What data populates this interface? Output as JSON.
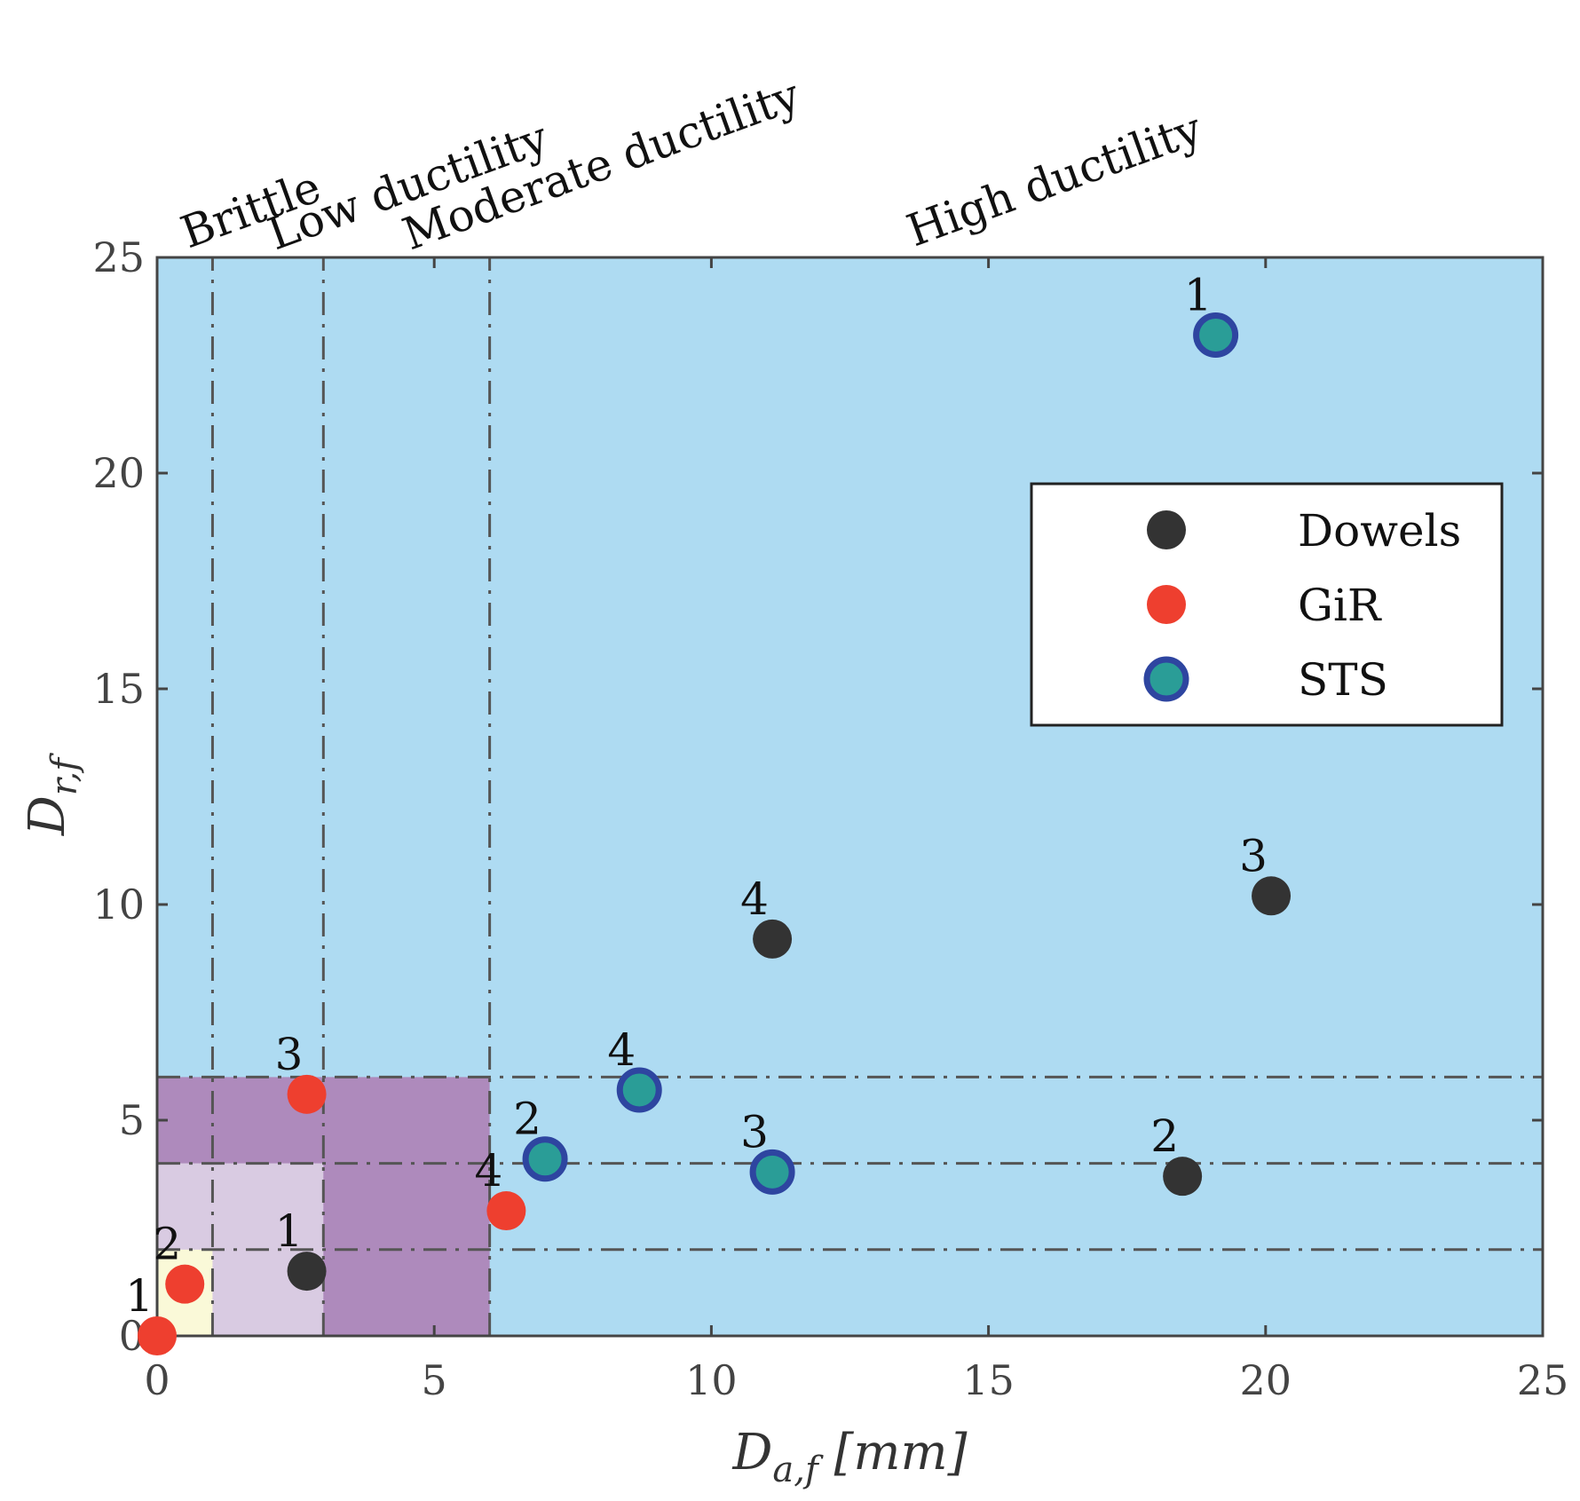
{
  "chart_data": {
    "type": "scatter",
    "xlabel": "D_{a,f} [mm]",
    "ylabel": "D_{r,f}",
    "xlim": [
      0,
      25
    ],
    "ylim": [
      0,
      25
    ],
    "xticks": [
      0,
      5,
      10,
      15,
      20,
      25
    ],
    "yticks": [
      0,
      5,
      10,
      15,
      20,
      25
    ],
    "legend_position": "top-right",
    "zones": [
      {
        "name": "Brittle",
        "x_max": 1,
        "y_max": 2,
        "color": "#faf9d8"
      },
      {
        "name": "Low ductility",
        "x_max": 3,
        "y_max": 4,
        "color": "#d9cbe2"
      },
      {
        "name": "Moderate ductility",
        "x_max": 6,
        "y_max": 6,
        "color": "#ae8abc"
      },
      {
        "name": "High ductility",
        "x_max": 25,
        "y_max": 25,
        "color": "#aedbf2"
      }
    ],
    "threshold_lines": {
      "x": [
        1,
        3,
        6
      ],
      "y": [
        2,
        4,
        6
      ]
    },
    "series": [
      {
        "name": "Dowels",
        "fill": "#333333",
        "stroke": "#333333",
        "points": [
          {
            "label": "1",
            "x": 2.7,
            "y": 1.5
          },
          {
            "label": "2",
            "x": 18.5,
            "y": 3.7
          },
          {
            "label": "3",
            "x": 20.1,
            "y": 10.2
          },
          {
            "label": "4",
            "x": 11.1,
            "y": 9.2
          }
        ]
      },
      {
        "name": "GiR",
        "fill": "#ee3f2f",
        "stroke": "#ee3f2f",
        "points": [
          {
            "label": "1",
            "x": 0.0,
            "y": 0.0
          },
          {
            "label": "2",
            "x": 0.5,
            "y": 1.2
          },
          {
            "label": "3",
            "x": 2.7,
            "y": 5.6
          },
          {
            "label": "4",
            "x": 6.3,
            "y": 2.9
          }
        ]
      },
      {
        "name": "STS",
        "fill": "#2a9d97",
        "stroke": "#2e45a0",
        "points": [
          {
            "label": "1",
            "x": 19.1,
            "y": 23.2
          },
          {
            "label": "2",
            "x": 7.0,
            "y": 4.1
          },
          {
            "label": "3",
            "x": 11.1,
            "y": 3.8
          },
          {
            "label": "4",
            "x": 8.7,
            "y": 5.7
          }
        ]
      }
    ]
  }
}
